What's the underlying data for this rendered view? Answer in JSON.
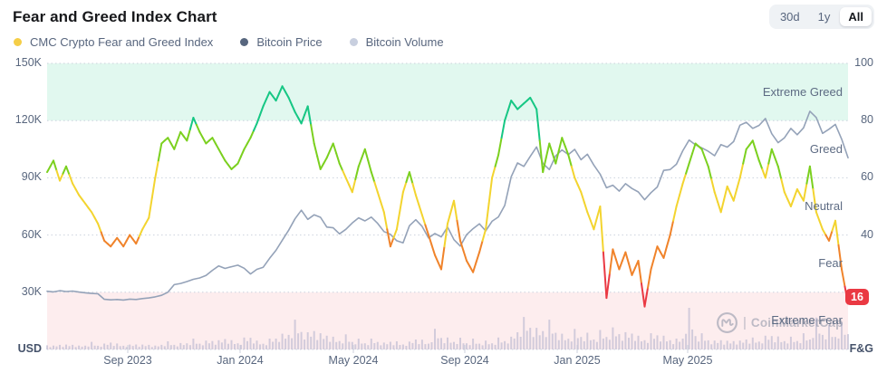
{
  "header": {
    "title": "Fear and Greed Index Chart",
    "range_buttons": [
      {
        "label": "30d",
        "active": false
      },
      {
        "label": "1y",
        "active": false
      },
      {
        "label": "All",
        "active": true
      }
    ]
  },
  "legend": [
    {
      "label": "CMC Crypto Fear and Greed Index",
      "color": "#f5ce47"
    },
    {
      "label": "Bitcoin Price",
      "color": "#57667e"
    },
    {
      "label": "Bitcoin Volume",
      "color": "#c8cfdf"
    }
  ],
  "watermark": {
    "text": "CoinMarketCap"
  },
  "colors": {
    "accent_red": "#ea3943",
    "btc_line": "#94a2b8",
    "volume_bar": "#bcb9d2",
    "grid": "#ccd2dd",
    "text": "#58667e"
  },
  "chart_data": {
    "type": "line",
    "title": "Fear and Greed Index Chart",
    "x_ticks": [
      "Sep 2023",
      "Jan 2024",
      "May 2024",
      "Sep 2024",
      "Jan 2025",
      "May 2025"
    ],
    "left_axis": {
      "unit": "USD",
      "ticks": [
        "150K",
        "120K",
        "90K",
        "60K",
        "30K"
      ],
      "range": [
        0,
        150000
      ]
    },
    "right_axis": {
      "unit": "F&G",
      "ticks": [
        "100",
        "80",
        "60",
        "40"
      ],
      "range": [
        0,
        100
      ]
    },
    "grid": "dotted-horizontal",
    "legend_position": "top-left",
    "current_value": 16,
    "zones": [
      {
        "label": "Extreme Greed",
        "range": [
          80,
          100
        ],
        "band_color": "rgba(22,199,132,0.13)"
      },
      {
        "label": "Greed",
        "range": [
          60,
          80
        ],
        "band_color": null
      },
      {
        "label": "Neutral",
        "range": [
          40,
          60
        ],
        "band_color": null
      },
      {
        "label": "Fear",
        "range": [
          20,
          40
        ],
        "band_color": null
      },
      {
        "label": "Extreme Fear",
        "range": [
          0,
          20
        ],
        "band_color": "rgba(234,57,67,0.09)"
      }
    ],
    "fg_thresholds": [
      {
        "gte": 79,
        "color": "#16c784"
      },
      {
        "gte": 62,
        "color": "#7bd01f"
      },
      {
        "gte": 42,
        "color": "#f3d42f"
      },
      {
        "gte": 22,
        "color": "#f0832a"
      },
      {
        "gte": 0,
        "color": "#ea3943"
      }
    ],
    "series": [
      {
        "name": "CMC Crypto Fear and Greed Index",
        "axis": "right",
        "style": "multicolor-line",
        "values": [
          62,
          66,
          59,
          64,
          58,
          54,
          51,
          48,
          44,
          38,
          36,
          39,
          36,
          40,
          37,
          42,
          46,
          60,
          72,
          74,
          70,
          76,
          73,
          81,
          76,
          72,
          74,
          70,
          66,
          63,
          65,
          70,
          74,
          79,
          85,
          90,
          87,
          92,
          88,
          83,
          79,
          85,
          72,
          63,
          67,
          72,
          65,
          60,
          55,
          64,
          70,
          62,
          55,
          48,
          36,
          42,
          55,
          62,
          54,
          47,
          40,
          33,
          28,
          44,
          52,
          38,
          31,
          27,
          34,
          42,
          60,
          68,
          80,
          87,
          84,
          86,
          88,
          84,
          62,
          72,
          65,
          74,
          68,
          60,
          55,
          48,
          42,
          50,
          18,
          35,
          28,
          34,
          26,
          31,
          15,
          28,
          36,
          32,
          40,
          50,
          58,
          65,
          72,
          70,
          64,
          55,
          48,
          57,
          52,
          60,
          70,
          73,
          66,
          60,
          70,
          64,
          55,
          50,
          56,
          52,
          64,
          48,
          42,
          38,
          45,
          28,
          16
        ]
      },
      {
        "name": "Bitcoin Price",
        "axis": "left",
        "unit": "K USD",
        "style": "line",
        "values": [
          30.5,
          30.2,
          30.8,
          30.4,
          30.6,
          30.1,
          29.7,
          29.4,
          29.2,
          26.3,
          26.0,
          26.2,
          25.9,
          26.4,
          26.2,
          26.7,
          27.0,
          27.6,
          28.4,
          30.0,
          34.0,
          34.6,
          35.6,
          36.8,
          37.5,
          38.8,
          41.5,
          43.8,
          42.5,
          43.4,
          44.2,
          42.6,
          39.6,
          42.0,
          43.1,
          47.8,
          52.0,
          57.3,
          62.5,
          68.5,
          73.0,
          68.2,
          70.6,
          69.3,
          64.2,
          63.8,
          60.6,
          63.0,
          66.3,
          69.0,
          67.4,
          69.4,
          66.1,
          61.8,
          60.4,
          57.0,
          55.9,
          64.9,
          68.0,
          64.5,
          58.5,
          60.8,
          59.0,
          64.2,
          57.6,
          54.2,
          60.2,
          63.3,
          65.9,
          62.2,
          67.2,
          69.5,
          75.5,
          90.5,
          97.8,
          96.0,
          101.2,
          106.2,
          97.6,
          94.3,
          101.5,
          104.6,
          102.2,
          104.9,
          99.5,
          102.4,
          96.7,
          91.9,
          84.8,
          86.1,
          83.0,
          86.9,
          84.4,
          82.6,
          78.5,
          82.2,
          85.2,
          93.9,
          94.3,
          97.1,
          104.2,
          109.8,
          107.3,
          105.7,
          103.9,
          101.6,
          107.4,
          106.1,
          109.0,
          117.6,
          119.1,
          115.9,
          117.5,
          121.1,
          113.1,
          108.4,
          111.0,
          115.9,
          112.6,
          116.2,
          124.9,
          121.6,
          113.3,
          115.5,
          118.0,
          110.2,
          100.5
        ]
      },
      {
        "name": "Bitcoin Volume",
        "axis": "none",
        "style": "bars",
        "values": [
          10,
          8,
          12,
          9,
          11,
          8,
          10,
          14,
          9,
          12,
          18,
          11,
          9,
          10,
          13,
          9,
          11,
          8,
          12,
          15,
          11,
          13,
          16,
          20,
          14,
          18,
          22,
          17,
          25,
          19,
          16,
          22,
          28,
          18,
          15,
          20,
          26,
          32,
          38,
          55,
          42,
          35,
          48,
          30,
          33,
          26,
          22,
          28,
          18,
          22,
          16,
          20,
          18,
          14,
          20,
          15,
          12,
          16,
          26,
          18,
          14,
          42,
          30,
          22,
          18,
          24,
          16,
          20,
          14,
          18,
          16,
          22,
          20,
          26,
          45,
          60,
          52,
          44,
          48,
          55,
          40,
          32,
          28,
          38,
          30,
          34,
          26,
          36,
          30,
          45,
          40,
          32,
          38,
          28,
          24,
          30,
          34,
          28,
          24,
          20,
          26,
          95,
          35,
          30,
          22,
          18,
          24,
          16,
          20,
          18,
          26,
          22,
          19,
          28,
          35,
          24,
          20,
          26,
          22,
          30,
          24,
          65,
          38,
          45,
          30,
          55,
          40
        ]
      }
    ]
  }
}
